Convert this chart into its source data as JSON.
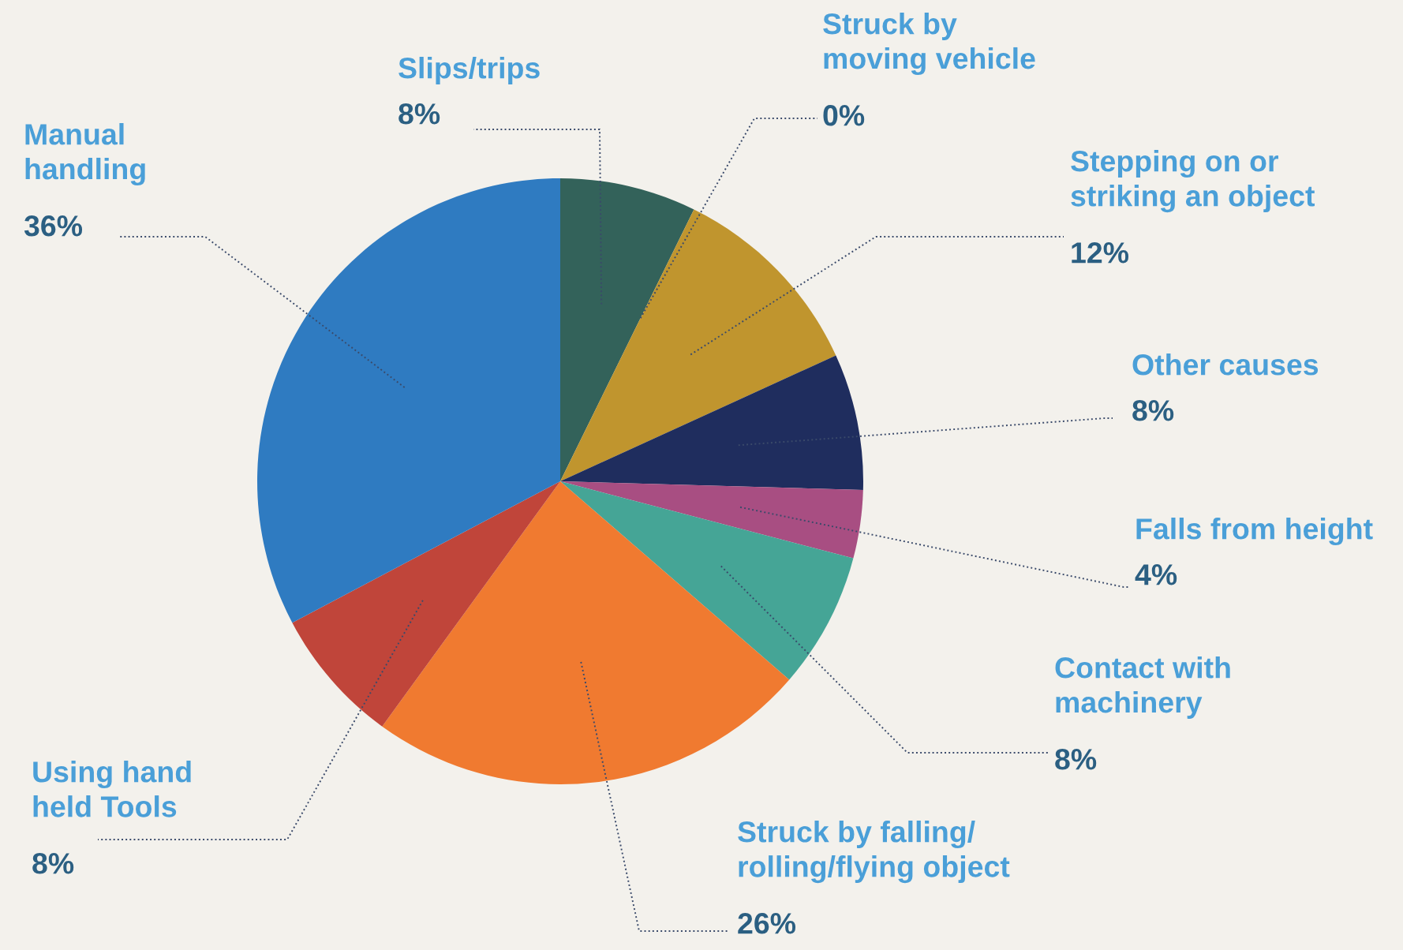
{
  "chart_data": {
    "type": "pie",
    "categories": [
      "Slips/trips",
      "Struck by\nmoving vehicle",
      "Stepping on or\nstriking an object",
      "Other causes",
      "Falls from height",
      "Contact with\nmachinery",
      "Struck by falling/\nrolling/flying object",
      "Using hand\nheld Tools",
      "Manual\nhandling"
    ],
    "values": [
      8,
      0,
      12,
      8,
      4,
      8,
      26,
      8,
      36
    ],
    "value_labels": [
      "8%",
      "0%",
      "12%",
      "8%",
      "4%",
      "8%",
      "26%",
      "8%",
      "36%"
    ],
    "colors": [
      "#33625a",
      "#7a3a6a",
      "#c0952e",
      "#1f2d5e",
      "#a84e82",
      "#45a596",
      "#f07a30",
      "#c0453a",
      "#2f7bc1"
    ]
  }
}
